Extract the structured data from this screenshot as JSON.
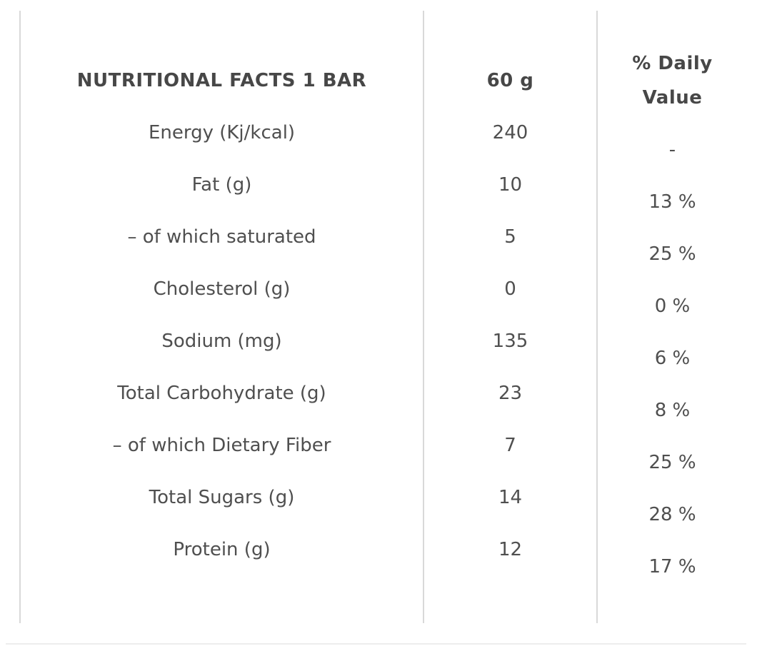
{
  "table": {
    "header": {
      "label": "NUTRITIONAL FACTS 1 BAR",
      "amount": "60 g",
      "daily_value": "% Daily\nValue"
    },
    "rows": [
      {
        "label": "Energy (Kj/kcal)",
        "amount": "240",
        "daily_value": "-"
      },
      {
        "label": "Fat (g)",
        "amount": "10",
        "daily_value": "13 %"
      },
      {
        "label": "– of which saturated",
        "amount": "5",
        "daily_value": "25 %"
      },
      {
        "label": "Cholesterol (g)",
        "amount": "0",
        "daily_value": "0 %"
      },
      {
        "label": "Sodium (mg)",
        "amount": "135",
        "daily_value": "6 %"
      },
      {
        "label": "Total Carbohydrate (g)",
        "amount": "23",
        "daily_value": "8 %"
      },
      {
        "label": "– of which Dietary Fiber",
        "amount": "7",
        "daily_value": "25 %"
      },
      {
        "label": "Total Sugars (g)",
        "amount": "14",
        "daily_value": "28 %"
      },
      {
        "label": "Protein (g)",
        "amount": "12",
        "daily_value": "17 %"
      }
    ],
    "colors": {
      "text": "#4f4f4f",
      "header_text": "#474747",
      "divider": "#d9d9d9",
      "bottom_rule": "#ededed",
      "background": "#ffffff"
    }
  }
}
